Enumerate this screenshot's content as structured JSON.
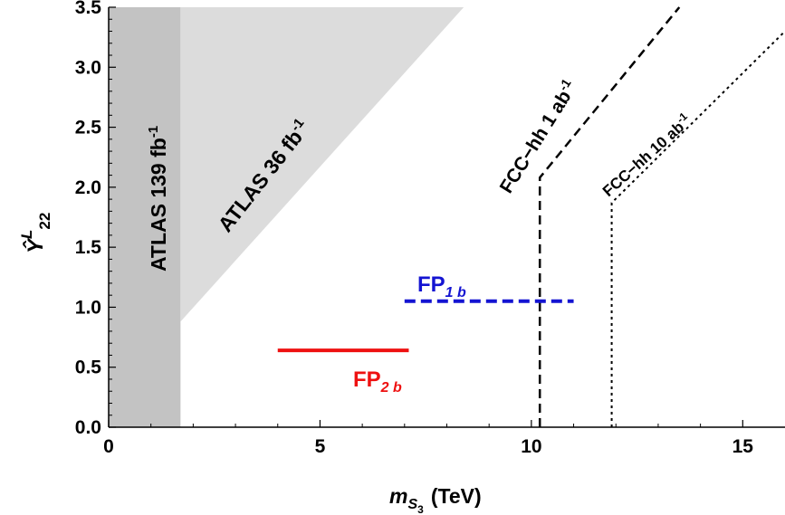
{
  "chart_data": {
    "type": "line",
    "xlabel_main": "m",
    "xlabel_sub": "S",
    "xlabel_subsub": "3",
    "xlabel_unit": "(TeV)",
    "ylabel_main": "Ŷ",
    "ylabel_sup": "L",
    "ylabel_sub": "22",
    "xlim": [
      0,
      16
    ],
    "ylim": [
      0,
      3.5
    ],
    "x_ticks": [
      "0",
      "5",
      "10",
      "15"
    ],
    "y_ticks": [
      "0.0",
      "0.5",
      "1.0",
      "1.5",
      "2.0",
      "2.5",
      "3.0",
      "3.5"
    ],
    "grid": false,
    "regions": [
      {
        "label": "ATLAS 139 fb",
        "label_sup": "-1",
        "color": "#c3c3c3",
        "boundary": [
          [
            0,
            0
          ],
          [
            1.7,
            0
          ],
          [
            1.7,
            3.5
          ],
          [
            0,
            3.5
          ]
        ]
      },
      {
        "label": "ATLAS 36 fb",
        "label_sup": "-1",
        "color": "#dcdcdc",
        "boundary": [
          [
            1.7,
            0.88
          ],
          [
            8.4,
            3.5
          ],
          [
            1.7,
            3.5
          ]
        ]
      }
    ],
    "series": [
      {
        "label": "FCC−hh 1 ab",
        "label_sup": "-1",
        "color": "#000000",
        "style": "dashed",
        "points": [
          [
            10.2,
            0
          ],
          [
            10.2,
            2.08
          ],
          [
            13.5,
            3.5
          ]
        ]
      },
      {
        "label": "FCC−hh 10 ab",
        "label_sup": "-1",
        "color": "#000000",
        "style": "dotted",
        "points": [
          [
            11.9,
            0
          ],
          [
            11.9,
            1.87
          ],
          [
            16.0,
            3.3
          ]
        ]
      }
    ],
    "benchmarks": [
      {
        "label": "FP",
        "label_sub": "1 b",
        "color": "#1414d2",
        "style": "dashed",
        "x": [
          7.0,
          11.0
        ],
        "y": 1.05
      },
      {
        "label": "FP",
        "label_sub": "2 b",
        "color": "#ee1111",
        "style": "solid",
        "x": [
          4.0,
          7.1
        ],
        "y": 0.64
      }
    ]
  }
}
